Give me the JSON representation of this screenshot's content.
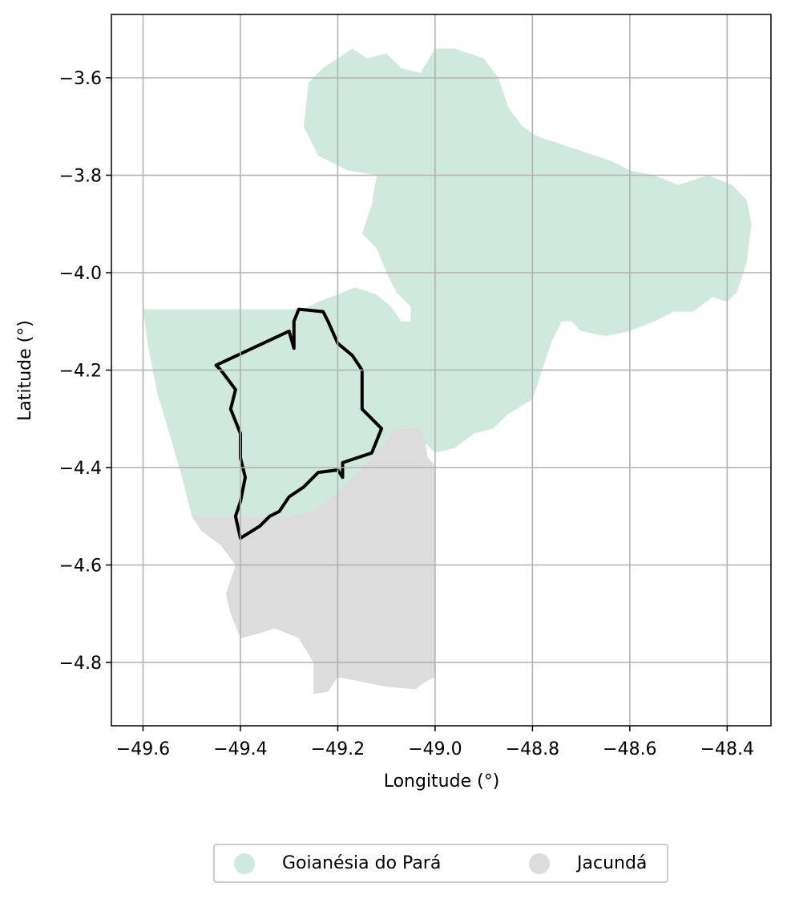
{
  "chart_data": {
    "type": "map",
    "xlabel": "Longitude (°)",
    "ylabel": "Latitude (°)",
    "xlim": [
      -49.665,
      -48.31
    ],
    "ylim": [
      -4.93,
      -3.47
    ],
    "xticks": [
      -49.6,
      -49.4,
      -49.2,
      -49.0,
      -48.8,
      -48.6,
      -48.4
    ],
    "yticks": [
      -3.6,
      -3.8,
      -4.0,
      -4.2,
      -4.4,
      -4.6,
      -4.8
    ],
    "xtick_labels": [
      "−49.6",
      "−49.4",
      "−49.2",
      "−49.0",
      "−48.8",
      "−48.6",
      "−48.4"
    ],
    "ytick_labels": [
      "−3.6",
      "−3.8",
      "−4.0",
      "−4.2",
      "−4.4",
      "−4.6",
      "−4.8"
    ],
    "grid": true,
    "legend_placement": "bottom-center",
    "regions": [
      {
        "name": "Goianésia do Pará",
        "color": "#cfeadd",
        "boundary": [
          [
            -49.6,
            -4.075
          ],
          [
            -49.27,
            -4.075
          ],
          [
            -49.24,
            -4.06
          ],
          [
            -49.2,
            -4.045
          ],
          [
            -49.165,
            -4.03
          ],
          [
            -49.12,
            -4.045
          ],
          [
            -49.09,
            -4.07
          ],
          [
            -49.07,
            -4.1
          ],
          [
            -49.05,
            -4.1
          ],
          [
            -49.05,
            -4.07
          ],
          [
            -49.08,
            -4.04
          ],
          [
            -49.1,
            -4.0
          ],
          [
            -49.12,
            -3.95
          ],
          [
            -49.15,
            -3.92
          ],
          [
            -49.13,
            -3.86
          ],
          [
            -49.12,
            -3.8
          ],
          [
            -49.18,
            -3.79
          ],
          [
            -49.24,
            -3.76
          ],
          [
            -49.27,
            -3.7
          ],
          [
            -49.26,
            -3.61
          ],
          [
            -49.23,
            -3.58
          ],
          [
            -49.2,
            -3.56
          ],
          [
            -49.17,
            -3.54
          ],
          [
            -49.14,
            -3.56
          ],
          [
            -49.1,
            -3.55
          ],
          [
            -49.07,
            -3.58
          ],
          [
            -49.03,
            -3.59
          ],
          [
            -49.0,
            -3.54
          ],
          [
            -48.96,
            -3.54
          ],
          [
            -48.93,
            -3.55
          ],
          [
            -48.9,
            -3.56
          ],
          [
            -48.87,
            -3.6
          ],
          [
            -48.85,
            -3.66
          ],
          [
            -48.82,
            -3.7
          ],
          [
            -48.79,
            -3.72
          ],
          [
            -48.76,
            -3.73
          ],
          [
            -48.7,
            -3.75
          ],
          [
            -48.64,
            -3.77
          ],
          [
            -48.6,
            -3.79
          ],
          [
            -48.55,
            -3.8
          ],
          [
            -48.5,
            -3.82
          ],
          [
            -48.44,
            -3.8
          ],
          [
            -48.39,
            -3.82
          ],
          [
            -48.36,
            -3.85
          ],
          [
            -48.35,
            -3.9
          ],
          [
            -48.36,
            -3.98
          ],
          [
            -48.38,
            -4.04
          ],
          [
            -48.4,
            -4.06
          ],
          [
            -48.43,
            -4.05
          ],
          [
            -48.47,
            -4.08
          ],
          [
            -48.51,
            -4.08
          ],
          [
            -48.55,
            -4.1
          ],
          [
            -48.6,
            -4.12
          ],
          [
            -48.65,
            -4.13
          ],
          [
            -48.7,
            -4.12
          ],
          [
            -48.72,
            -4.1
          ],
          [
            -48.74,
            -4.1
          ],
          [
            -48.76,
            -4.14
          ],
          [
            -48.78,
            -4.2
          ],
          [
            -48.8,
            -4.26
          ],
          [
            -48.85,
            -4.29
          ],
          [
            -48.88,
            -4.32
          ],
          [
            -48.92,
            -4.33
          ],
          [
            -48.96,
            -4.36
          ],
          [
            -49.0,
            -4.37
          ],
          [
            -49.02,
            -4.35
          ],
          [
            -49.05,
            -4.32
          ],
          [
            -49.08,
            -4.32
          ],
          [
            -49.15,
            -4.4
          ],
          [
            -49.2,
            -4.45
          ],
          [
            -49.25,
            -4.49
          ],
          [
            -49.3,
            -4.5
          ],
          [
            -49.5,
            -4.5
          ],
          [
            -49.52,
            -4.42
          ],
          [
            -49.54,
            -4.35
          ],
          [
            -49.57,
            -4.25
          ],
          [
            -49.59,
            -4.15
          ]
        ]
      },
      {
        "name": "Jacundá",
        "color": "#dcdcdc",
        "boundary": [
          [
            -49.5,
            -4.5
          ],
          [
            -49.3,
            -4.5
          ],
          [
            -49.25,
            -4.49
          ],
          [
            -49.2,
            -4.45
          ],
          [
            -49.15,
            -4.4
          ],
          [
            -49.08,
            -4.32
          ],
          [
            -49.03,
            -4.32
          ],
          [
            -49.02,
            -4.35
          ],
          [
            -49.015,
            -4.38
          ],
          [
            -49.0,
            -4.395
          ],
          [
            -49.0,
            -4.83
          ],
          [
            -49.02,
            -4.84
          ],
          [
            -49.04,
            -4.855
          ],
          [
            -49.1,
            -4.85
          ],
          [
            -49.15,
            -4.84
          ],
          [
            -49.2,
            -4.83
          ],
          [
            -49.22,
            -4.86
          ],
          [
            -49.25,
            -4.865
          ],
          [
            -49.25,
            -4.8
          ],
          [
            -49.28,
            -4.75
          ],
          [
            -49.33,
            -4.73
          ],
          [
            -49.36,
            -4.74
          ],
          [
            -49.4,
            -4.75
          ],
          [
            -49.42,
            -4.7
          ],
          [
            -49.43,
            -4.66
          ],
          [
            -49.42,
            -4.63
          ],
          [
            -49.41,
            -4.6
          ],
          [
            -49.44,
            -4.56
          ],
          [
            -49.48,
            -4.53
          ]
        ]
      }
    ],
    "overlay": {
      "color": "#000000",
      "boundary": [
        [
          -49.29,
          -4.155
        ],
        [
          -49.3,
          -4.12
        ],
        [
          -49.45,
          -4.19
        ],
        [
          -49.44,
          -4.2
        ],
        [
          -49.425,
          -4.22
        ],
        [
          -49.41,
          -4.24
        ],
        [
          -49.42,
          -4.28
        ],
        [
          -49.4,
          -4.33
        ],
        [
          -49.4,
          -4.38
        ],
        [
          -49.39,
          -4.42
        ],
        [
          -49.4,
          -4.47
        ],
        [
          -49.41,
          -4.5
        ],
        [
          -49.4,
          -4.545
        ],
        [
          -49.36,
          -4.52
        ],
        [
          -49.34,
          -4.5
        ],
        [
          -49.32,
          -4.49
        ],
        [
          -49.3,
          -4.46
        ],
        [
          -49.27,
          -4.44
        ],
        [
          -49.24,
          -4.41
        ],
        [
          -49.2,
          -4.405
        ],
        [
          -49.19,
          -4.42
        ],
        [
          -49.19,
          -4.39
        ],
        [
          -49.13,
          -4.37
        ],
        [
          -49.11,
          -4.32
        ],
        [
          -49.15,
          -4.28
        ],
        [
          -49.15,
          -4.2
        ],
        [
          -49.17,
          -4.17
        ],
        [
          -49.2,
          -4.145
        ],
        [
          -49.22,
          -4.1
        ],
        [
          -49.23,
          -4.08
        ],
        [
          -49.28,
          -4.075
        ],
        [
          -49.29,
          -4.1
        ]
      ]
    },
    "legend": [
      "Goianésia do Pará",
      "Jacundá"
    ]
  },
  "legend": {
    "items": [
      {
        "label": "Goianésia do Pará",
        "color": "#cfeadd"
      },
      {
        "label": "Jacundá",
        "color": "#dcdcdc"
      }
    ]
  }
}
